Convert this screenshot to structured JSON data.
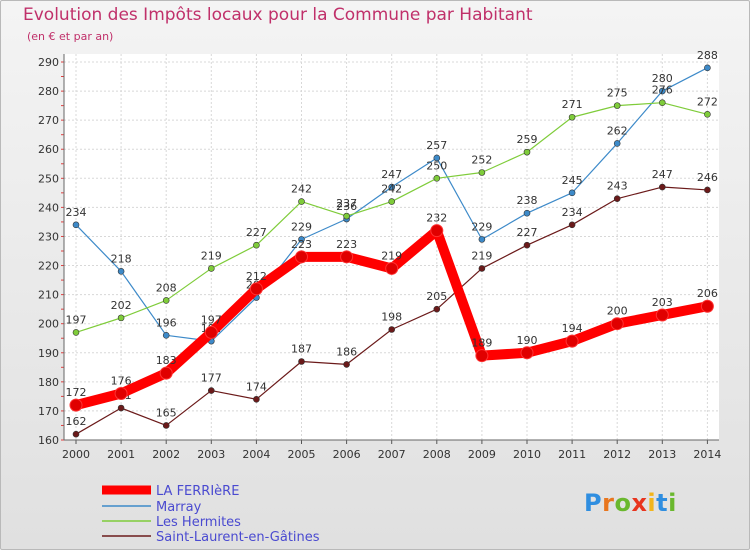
{
  "title": "Evolution des Impôts locaux pour la Commune par Habitant",
  "subtitle": "(en € et par an)",
  "logo": {
    "text": "Proxiti",
    "letters": [
      {
        "ch": "P",
        "color": "#2f8ee0"
      },
      {
        "ch": "r",
        "color": "#e8761e"
      },
      {
        "ch": "o",
        "color": "#6ab82e"
      },
      {
        "ch": "x",
        "color": "#e8341e"
      },
      {
        "ch": "i",
        "color": "#f2b51c"
      },
      {
        "ch": "t",
        "color": "#2f8ee0"
      },
      {
        "ch": "i",
        "color": "#6ab82e"
      }
    ]
  },
  "chart_data": {
    "type": "line",
    "title": "Evolution des Impôts locaux pour la Commune par Habitant",
    "ylabel": "(en € et par an)",
    "xlabel": "",
    "x": [
      "2000",
      "2001",
      "2002",
      "2003",
      "2004",
      "2005",
      "2006",
      "2007",
      "2008",
      "2009",
      "2010",
      "2011",
      "2012",
      "2013",
      "2014"
    ],
    "ylim": [
      160,
      290
    ],
    "yticks": [
      160,
      170,
      180,
      190,
      200,
      210,
      220,
      230,
      240,
      250,
      260,
      270,
      280,
      290
    ],
    "grid": true,
    "legend_position": "bottom-left",
    "series": [
      {
        "name": "Marray",
        "color": "#3d8ac9",
        "values": [
          234,
          218,
          196,
          194,
          209,
          229,
          236,
          247,
          257,
          229,
          238,
          245,
          262,
          280,
          288
        ]
      },
      {
        "name": "Les Hermites",
        "color": "#7fcc3a",
        "values": [
          197,
          202,
          208,
          219,
          227,
          242,
          237,
          242,
          250,
          252,
          259,
          271,
          275,
          276,
          272
        ]
      },
      {
        "name": "Saint-Laurent-en-Gâtines",
        "color": "#6b1a1a",
        "values": [
          162,
          171,
          165,
          177,
          174,
          187,
          186,
          198,
          205,
          219,
          227,
          234,
          243,
          247,
          246
        ]
      },
      {
        "name": "LA FERRIèRE",
        "color": "#ff0000",
        "values": [
          172,
          176,
          183,
          197,
          212,
          223,
          223,
          219,
          232,
          189,
          190,
          194,
          200,
          203,
          206
        ]
      }
    ]
  }
}
